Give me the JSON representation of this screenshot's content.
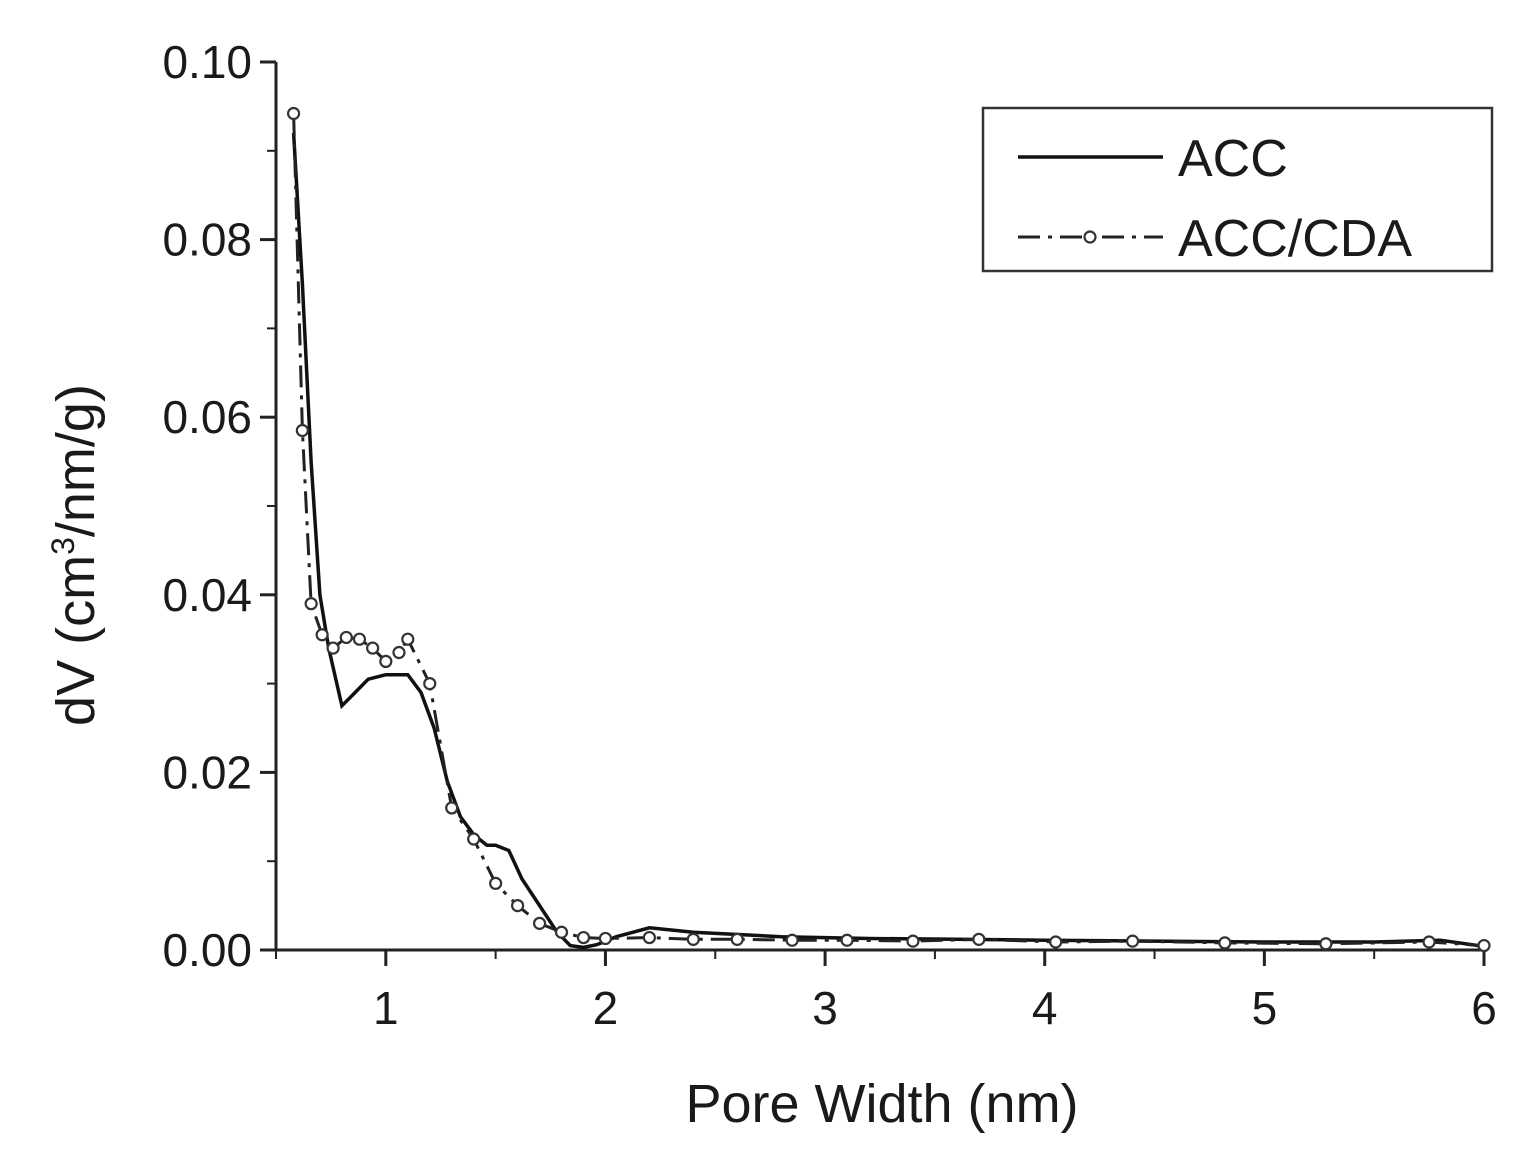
{
  "chart_data": {
    "type": "line",
    "xlabel": "Pore Width (nm)",
    "ylabel_main": "dV (cm",
    "ylabel_sup": "3",
    "ylabel_tail": "/nm/g)",
    "xlim": [
      0.5,
      6
    ],
    "ylim": [
      0,
      0.1
    ],
    "x_ticks": [
      1,
      2,
      3,
      4,
      5,
      6
    ],
    "x_tick_labels": [
      "1",
      "2",
      "3",
      "4",
      "5",
      "6"
    ],
    "y_ticks": [
      0,
      0.02,
      0.04,
      0.06,
      0.08,
      0.1
    ],
    "y_tick_labels": [
      "0.00",
      "0.02",
      "0.04",
      "0.06",
      "0.08",
      "0.10"
    ],
    "grid": false,
    "legend_position": "top-right",
    "series": [
      {
        "name": "ACC",
        "style": "solid",
        "x": [
          0.58,
          0.62,
          0.66,
          0.7,
          0.74,
          0.8,
          0.86,
          0.92,
          1.0,
          1.1,
          1.16,
          1.22,
          1.28,
          1.34,
          1.4,
          1.46,
          1.5,
          1.56,
          1.62,
          1.7,
          1.78,
          1.84,
          1.9,
          1.96,
          2.05,
          2.2,
          2.4,
          2.8,
          3.2,
          3.6,
          4.0,
          4.5,
          5.0,
          5.5,
          5.8,
          6.0
        ],
        "y": [
          0.092,
          0.075,
          0.055,
          0.04,
          0.034,
          0.0275,
          0.029,
          0.0305,
          0.031,
          0.031,
          0.029,
          0.025,
          0.019,
          0.015,
          0.013,
          0.0118,
          0.0118,
          0.0112,
          0.008,
          0.005,
          0.002,
          0.0005,
          0.0003,
          0.0006,
          0.0015,
          0.0025,
          0.002,
          0.0015,
          0.0013,
          0.0012,
          0.0011,
          0.001,
          0.0009,
          0.0009,
          0.0011,
          0.0004
        ]
      },
      {
        "name": "ACC/CDA",
        "style": "dash-dot",
        "markers": "open-circle",
        "x": [
          0.58,
          0.62,
          0.66,
          0.71,
          0.76,
          0.82,
          0.88,
          0.94,
          1.0,
          1.06,
          1.1,
          1.2,
          1.3,
          1.4,
          1.5,
          1.6,
          1.7,
          1.8,
          1.9,
          2.0,
          2.2,
          2.4,
          2.6,
          2.85,
          3.1,
          3.4,
          3.7,
          4.05,
          4.4,
          4.82,
          5.28,
          5.75,
          6.0
        ],
        "y": [
          0.0942,
          0.0585,
          0.039,
          0.0355,
          0.034,
          0.0352,
          0.035,
          0.034,
          0.0325,
          0.0335,
          0.035,
          0.03,
          0.016,
          0.0125,
          0.0075,
          0.005,
          0.003,
          0.002,
          0.0014,
          0.0013,
          0.0014,
          0.0012,
          0.0012,
          0.0011,
          0.0011,
          0.001,
          0.0012,
          0.0009,
          0.001,
          0.0008,
          0.0007,
          0.0009,
          0.0005
        ]
      }
    ]
  },
  "colors": {
    "axis": "#222222",
    "series": "#111111",
    "background": "#ffffff"
  }
}
